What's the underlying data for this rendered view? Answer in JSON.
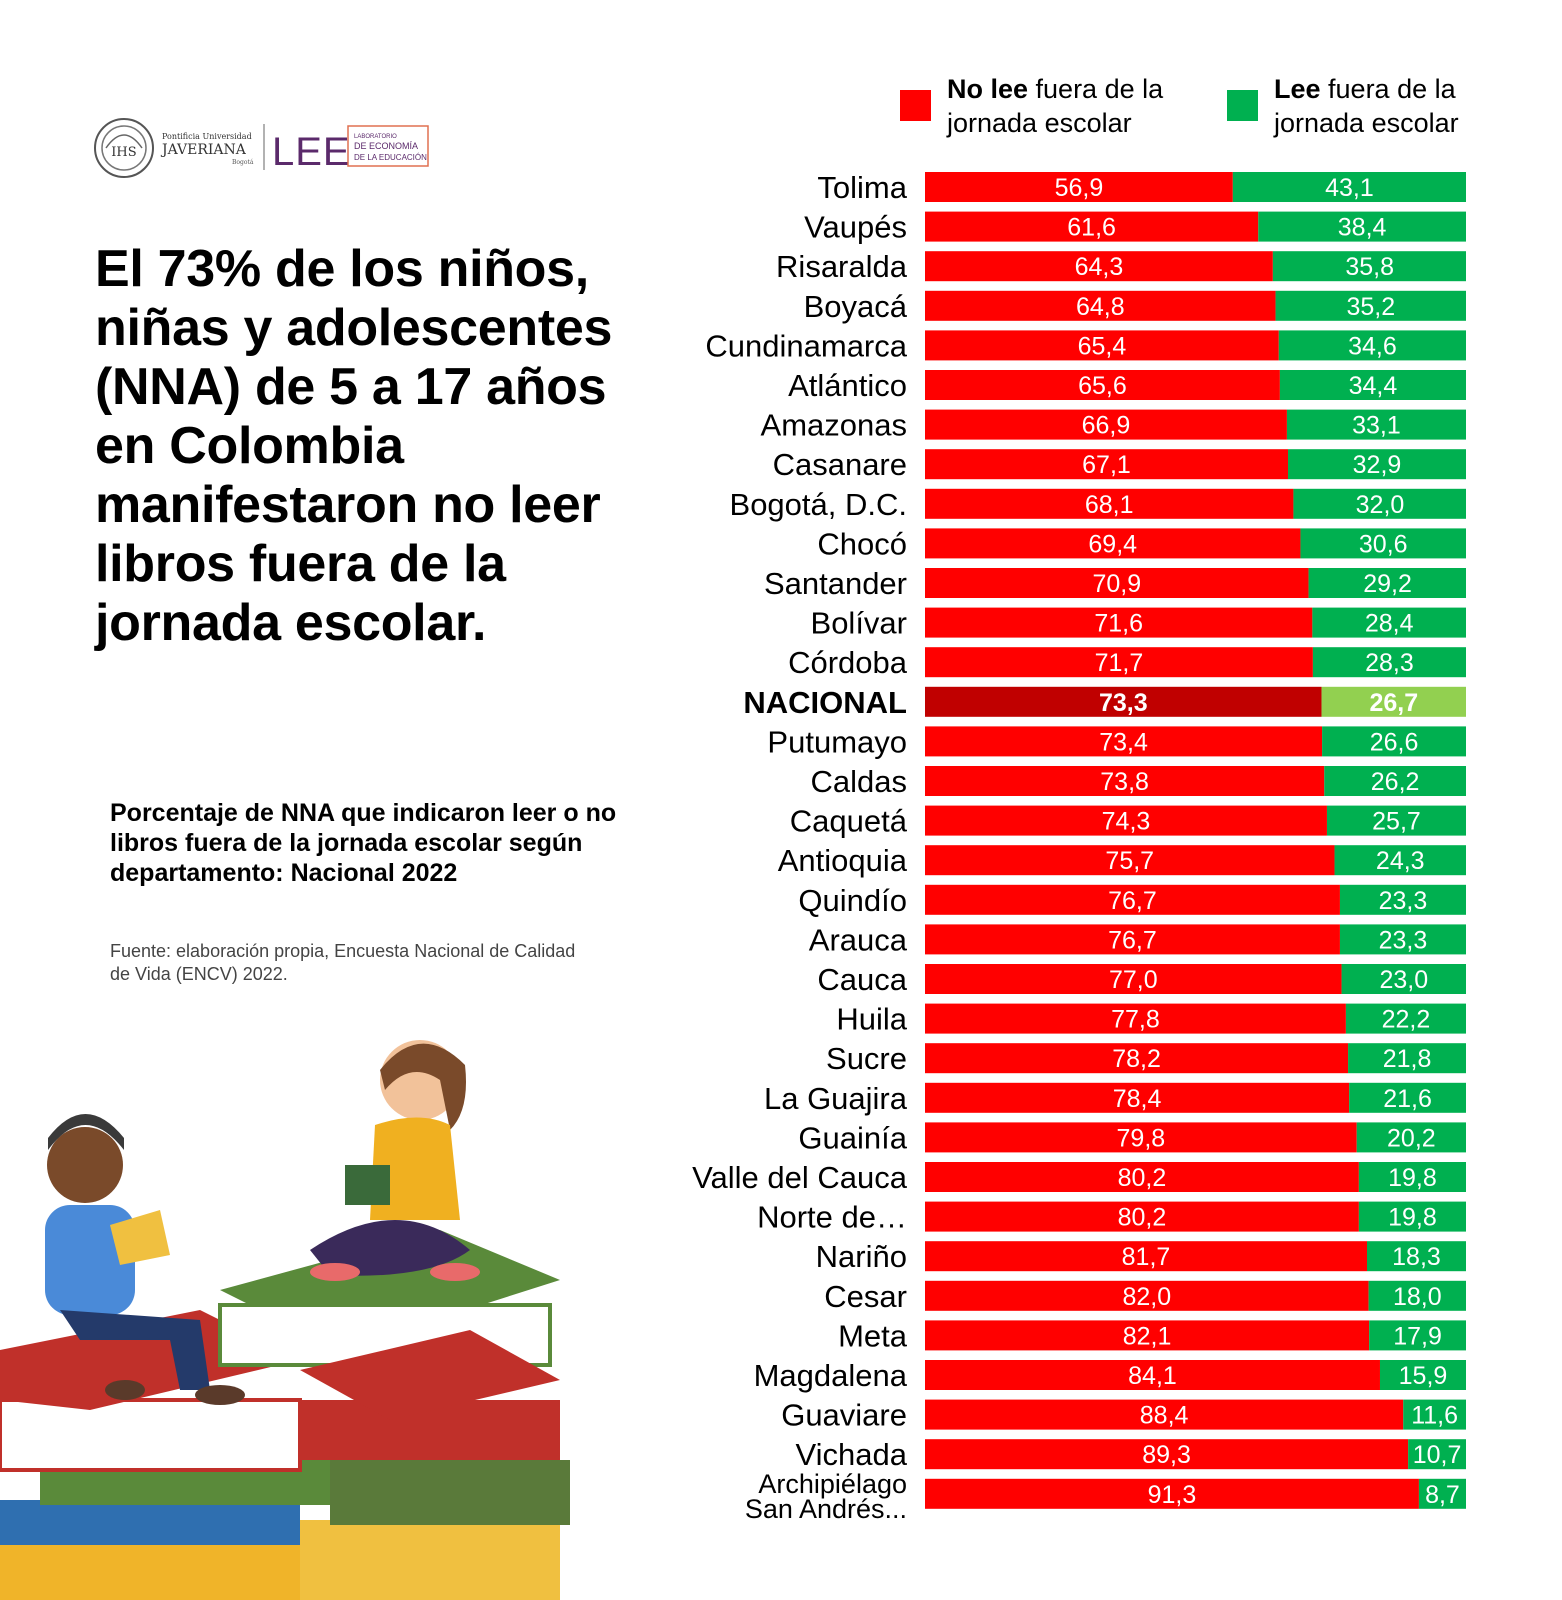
{
  "logo": {
    "institution_small": "Pontificia Universidad",
    "institution_name": "JAVERIANA",
    "institution_city": "Bogotá",
    "seal_text": "IHS",
    "lee_text": "LEE",
    "lab_line1": "LABORATORIO",
    "lab_line2": "DE ECONOMÍA",
    "lab_line3": "DE LA EDUCACIÓN"
  },
  "headline": "El 73% de los niños, niñas y adolescentes (NNA) de 5 a 17 años en Colombia manifestaron no leer libros fuera de la jornada escolar.",
  "chart_subtitle": "Porcentaje de NNA que indicaron leer o no libros fuera de la jornada escolar según departamento: Nacional 2022",
  "source": "Fuente: elaboración propia, Encuesta Nacional de Calidad de Vida (ENCV) 2022.",
  "legend": {
    "no_lee_bold": "No lee",
    "no_lee_rest": " fuera de la jornada escolar",
    "lee_bold": "Lee",
    "lee_rest": " fuera de la jornada escolar"
  },
  "colors": {
    "no_lee": "#ff0000",
    "lee": "#00b050",
    "no_lee_nacional": "#c00000",
    "lee_nacional": "#92d050",
    "bar_label": "#ffffff"
  },
  "chart_data": {
    "type": "bar",
    "orientation": "horizontal",
    "stacked": true,
    "xlim": [
      0,
      100
    ],
    "highlight_category": "NACIONAL",
    "categories": [
      "Tolima",
      "Vaupés",
      "Risaralda",
      "Boyacá",
      "Cundinamarca",
      "Atlántico",
      "Amazonas",
      "Casanare",
      "Bogotá, D.C.",
      "Chocó",
      "Santander",
      "Bolívar",
      "Córdoba",
      "NACIONAL",
      "Putumayo",
      "Caldas",
      "Caquetá",
      "Antioquia",
      "Quindío",
      "Arauca",
      "Cauca",
      "Huila",
      "Sucre",
      "La Guajira",
      "Guainía",
      "Valle del Cauca",
      "Norte de…",
      "Nariño",
      "Cesar",
      "Meta",
      "Magdalena",
      "Guaviare",
      "Vichada",
      "Archipiélago San Andrés..."
    ],
    "series": [
      {
        "name": "No lee fuera de la jornada escolar",
        "values": [
          56.9,
          61.6,
          64.3,
          64.8,
          65.4,
          65.6,
          66.9,
          67.1,
          68.1,
          69.4,
          70.9,
          71.6,
          71.7,
          73.3,
          73.4,
          73.8,
          74.3,
          75.7,
          76.7,
          76.7,
          77.0,
          77.8,
          78.2,
          78.4,
          79.8,
          80.2,
          80.2,
          81.7,
          82.0,
          82.1,
          84.1,
          88.4,
          89.3,
          91.3
        ],
        "labels": [
          "56,9",
          "61,6",
          "64,3",
          "64,8",
          "65,4",
          "65,6",
          "66,9",
          "67,1",
          "68,1",
          "69,4",
          "70,9",
          "71,6",
          "71,7",
          "73,3",
          "73,4",
          "73,8",
          "74,3",
          "75,7",
          "76,7",
          "76,7",
          "77,0",
          "77,8",
          "78,2",
          "78,4",
          "79,8",
          "80,2",
          "80,2",
          "81,7",
          "82,0",
          "82,1",
          "84,1",
          "88,4",
          "89,3",
          "91,3"
        ]
      },
      {
        "name": "Lee fuera de la jornada escolar",
        "values": [
          43.1,
          38.4,
          35.8,
          35.2,
          34.6,
          34.4,
          33.1,
          32.9,
          32.0,
          30.6,
          29.2,
          28.4,
          28.3,
          26.7,
          26.6,
          26.2,
          25.7,
          24.3,
          23.3,
          23.3,
          23.0,
          22.2,
          21.8,
          21.6,
          20.2,
          19.8,
          19.8,
          18.3,
          18.0,
          17.9,
          15.9,
          11.6,
          10.7,
          8.7
        ],
        "labels": [
          "43,1",
          "38,4",
          "35,8",
          "35,2",
          "34,6",
          "34,4",
          "33,1",
          "32,9",
          "32,0",
          "30,6",
          "29,2",
          "28,4",
          "28,3",
          "26,7",
          "26,6",
          "26,2",
          "25,7",
          "24,3",
          "23,3",
          "23,3",
          "23,0",
          "22,2",
          "21,8",
          "21,6",
          "20,2",
          "19,8",
          "19,8",
          "18,3",
          "18,0",
          "17,9",
          "15,9",
          "11,6",
          "10,7",
          "8,7"
        ]
      }
    ]
  }
}
